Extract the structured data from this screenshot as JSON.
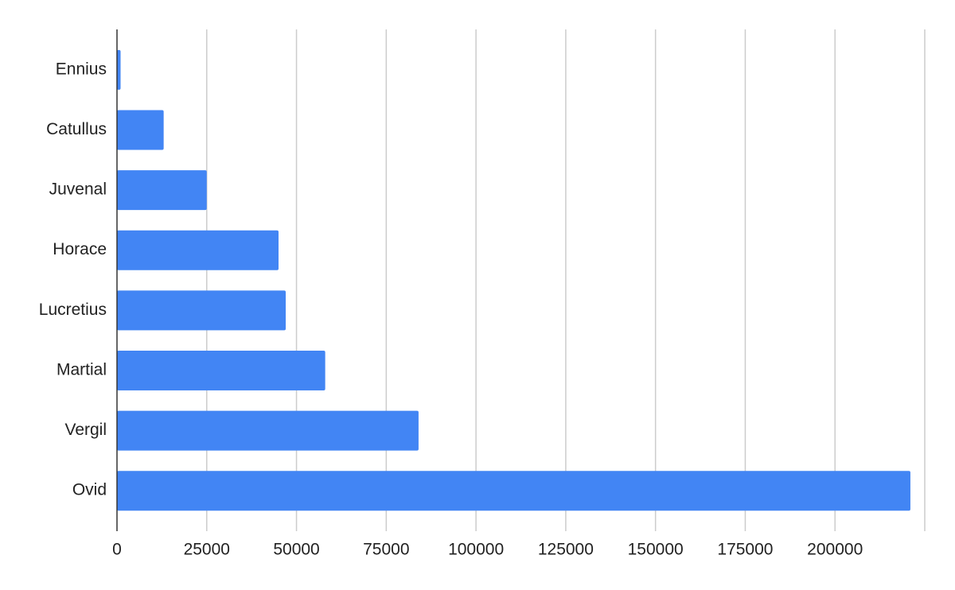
{
  "chart_data": {
    "type": "bar",
    "orientation": "horizontal",
    "categories": [
      "Ennius",
      "Catullus",
      "Juvenal",
      "Horace",
      "Lucretius",
      "Martial",
      "Vergil",
      "Ovid"
    ],
    "values": [
      1000,
      13000,
      25000,
      45000,
      47000,
      58000,
      84000,
      221000
    ],
    "color": "#4285f4",
    "xlim": [
      0,
      225000
    ],
    "xticks": [
      0,
      25000,
      50000,
      75000,
      100000,
      125000,
      150000,
      175000,
      200000
    ],
    "grid": true
  }
}
